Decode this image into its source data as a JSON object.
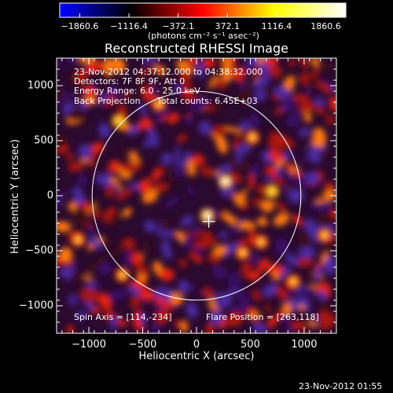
{
  "colorbar": {
    "tick_labels": [
      "−1860.6",
      "−1116.4",
      "−372.1",
      "372.1",
      "1116.4",
      "1860.6"
    ],
    "range": [
      -1860.6,
      1860.6
    ],
    "colormap": [
      "#0000ff",
      "#000000",
      "#ff0000",
      "#ffff00",
      "#ffffff"
    ],
    "units": "(photons cm⁻² s⁻¹ asec⁻²)"
  },
  "chart_data": {
    "type": "heatmap",
    "title": "Reconstructed RHESSI Image",
    "xlabel": "Heliocentric X (arcsec)",
    "ylabel": "Heliocentric Y (arcsec)",
    "xlim": [
      -1300,
      1300
    ],
    "ylim": [
      -1250,
      1250
    ],
    "xticks": [
      -1000,
      -500,
      0,
      500,
      1000
    ],
    "yticks": [
      -1000,
      -500,
      0,
      500,
      1000
    ],
    "xtick_labels": [
      "−1000",
      "−500",
      "0",
      "500",
      "1000"
    ],
    "ytick_labels": [
      "−1000",
      "−500",
      "0",
      "500",
      "1000"
    ],
    "solar_limb_radius_arcsec": 970,
    "bright_sources": [
      {
        "x": 270,
        "y": 130,
        "intensity": 1860.6
      },
      {
        "x": 700,
        "y": 40,
        "intensity": 1500
      },
      {
        "x": -720,
        "y": 680,
        "intensity": 1500
      },
      {
        "x": 100,
        "y": -180,
        "intensity": 1700
      },
      {
        "x": 1190,
        "y": -360,
        "intensity": 1300
      },
      {
        "x": -690,
        "y": -720,
        "intensity": 1200
      },
      {
        "x": 430,
        "y": -520,
        "intensity": 1100
      },
      {
        "x": 900,
        "y": -780,
        "intensity": 1100
      },
      {
        "x": -350,
        "y": 830,
        "intensity": 1000
      },
      {
        "x": 520,
        "y": 530,
        "intensity": 1000
      },
      {
        "x": -1100,
        "y": -400,
        "intensity": 900
      },
      {
        "x": 600,
        "y": -420,
        "intensity": 1100
      }
    ],
    "marker": {
      "x": 114,
      "y": -234,
      "symbol": "+"
    },
    "annotations": {
      "time_range": "23-Nov-2012 04:37:12.000 to 04:38:32.000",
      "detectors": "Detectors: 7F 8F 9F, Att 0",
      "energy_range": "Energy Range: 6.0 - 25.0 keV",
      "method": "Back Projection",
      "total_counts": "Total counts: 6.45E+03",
      "spin_axis": "Spin Axis = [114,-234]",
      "flare_position": "Flare Position = [263,118]"
    }
  },
  "footer_timestamp": "23-Nov-2012 01:55"
}
